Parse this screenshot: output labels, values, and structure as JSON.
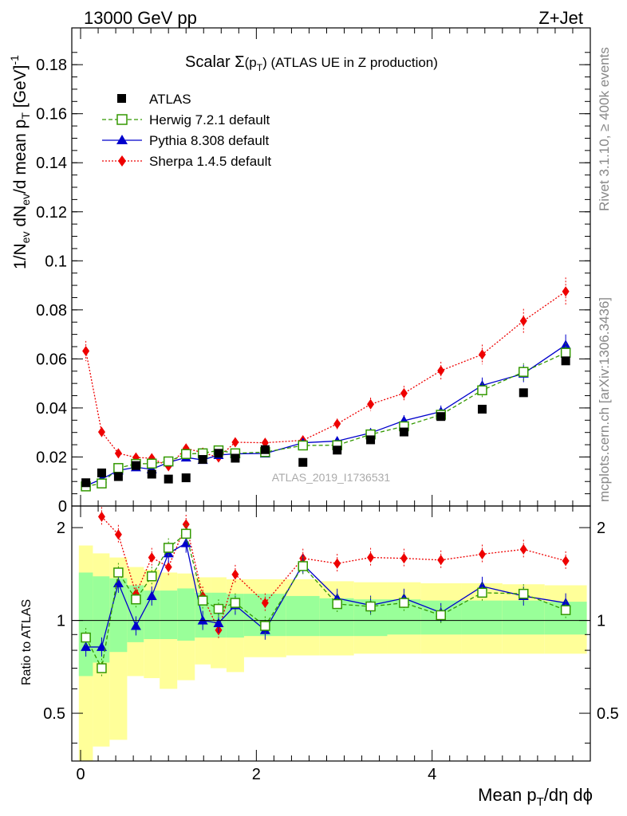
{
  "header": {
    "energy": "13000 GeV pp",
    "process": "Z+Jet"
  },
  "side_texts": {
    "rivet": "Rivet 3.1.10, ≥ 400k events",
    "source": "mcplots.cern.ch [arXiv:1306.3436]"
  },
  "watermark": "ATLAS_2019_I1736531",
  "main_title": {
    "prefix": "Scalar ",
    "sigma": "Σ",
    "inner": "(p",
    "sub": "T",
    "close": ")",
    "rest": "  (ATLAS UE in Z production)"
  },
  "y_label": {
    "a": "1/N",
    "a_sub": "ev",
    "b": " dN",
    "b_sub": "ev",
    "c": "/d mean p",
    "c_sub": "T",
    "d": " [GeV]",
    "d_sup": "-1"
  },
  "ratio_y_label": "Ratio to ATLAS",
  "x_label": {
    "a": "Mean p",
    "a_sub": "T",
    "b": "/dη dϕ"
  },
  "colors": {
    "atlas": "#000000",
    "herwig": "#339900",
    "pythia": "#0000cc",
    "sherpa": "#ee0000",
    "band_inner": "#99ff99",
    "band_outer": "#ffff99"
  },
  "chart_data": [
    {
      "type": "scatter",
      "panel": "main",
      "xlim": [
        -0.1,
        5.8
      ],
      "ylim": [
        0,
        0.195
      ],
      "xticks": [
        0,
        2,
        4
      ],
      "yticks": [
        0,
        0.02,
        0.04,
        0.06,
        0.08,
        0.1,
        0.12,
        0.14,
        0.16,
        0.18
      ],
      "ytick_labels": [
        "0",
        "0.02",
        "0.04",
        "0.06",
        "0.08",
        "0.1",
        "0.12",
        "0.14",
        "0.16",
        "0.18"
      ],
      "x": [
        0.06,
        0.24,
        0.43,
        0.63,
        0.81,
        1.0,
        1.2,
        1.39,
        1.57,
        1.76,
        2.1,
        2.53,
        2.92,
        3.3,
        3.68,
        4.1,
        4.57,
        5.04,
        5.52
      ],
      "series": [
        {
          "name": "ATLAS",
          "label": "ATLAS",
          "style": "square",
          "values": [
            0.0095,
            0.0135,
            0.012,
            0.0165,
            0.013,
            0.011,
            0.0115,
            0.019,
            0.0215,
            0.0195,
            0.023,
            0.0178,
            0.0228,
            0.027,
            0.0302,
            0.0365,
            0.0395,
            0.0462,
            0.0592
          ]
        },
        {
          "name": "Herwig",
          "label": "Herwig 7.2.1 default",
          "style": "open-square",
          "values": [
            0.008,
            0.0092,
            0.0155,
            0.0172,
            0.0173,
            0.0182,
            0.0212,
            0.0215,
            0.0227,
            0.0215,
            0.022,
            0.0247,
            0.0248,
            0.0292,
            0.0325,
            0.0372,
            0.0472,
            0.0547,
            0.0625
          ]
        },
        {
          "name": "Pythia",
          "label": "Pythia 8.308 default",
          "style": "triangle",
          "values": [
            0.0082,
            0.011,
            0.0145,
            0.0158,
            0.015,
            0.0178,
            0.0198,
            0.0188,
            0.0208,
            0.0213,
            0.0214,
            0.0258,
            0.0265,
            0.0298,
            0.0348,
            0.0385,
            0.0492,
            0.054,
            0.0657
          ]
        },
        {
          "name": "Sherpa",
          "label": "Sherpa 1.4.5 default",
          "style": "diamond",
          "values": [
            0.0632,
            0.0302,
            0.0215,
            0.0198,
            0.0195,
            0.0162,
            0.0235,
            0.0218,
            0.0198,
            0.026,
            0.0258,
            0.0268,
            0.0335,
            0.0415,
            0.046,
            0.0552,
            0.0618,
            0.0755,
            0.0875
          ]
        }
      ]
    },
    {
      "type": "scatter",
      "panel": "ratio",
      "xlim": [
        -0.1,
        5.8
      ],
      "ylim": [
        0.35,
        2.35
      ],
      "yticks": [
        0.5,
        1,
        2
      ],
      "ytick_labels": [
        "0.5",
        "1",
        "2"
      ],
      "x": [
        0.06,
        0.24,
        0.43,
        0.63,
        0.81,
        1.0,
        1.2,
        1.39,
        1.57,
        1.76,
        2.1,
        2.53,
        2.92,
        3.3,
        3.68,
        4.1,
        4.57,
        5.04,
        5.52
      ],
      "bin_edges": [
        -0.02,
        0.14,
        0.33,
        0.53,
        0.72,
        0.9,
        1.1,
        1.3,
        1.48,
        1.66,
        1.86,
        2.34,
        2.72,
        3.11,
        3.49,
        3.87,
        4.33,
        4.8,
        5.28,
        5.76
      ],
      "band_inner": {
        "lo": [
          0.66,
          0.73,
          0.79,
          0.85,
          0.87,
          0.87,
          0.86,
          0.88,
          0.88,
          0.88,
          0.89,
          0.89,
          0.89,
          0.89,
          0.9,
          0.9,
          0.9,
          0.9,
          0.9
        ],
        "hi": [
          1.43,
          1.39,
          1.37,
          1.3,
          1.25,
          1.25,
          1.27,
          1.23,
          1.23,
          1.22,
          1.22,
          1.2,
          1.18,
          1.17,
          1.17,
          1.16,
          1.16,
          1.16,
          1.15
        ]
      },
      "band_outer": {
        "lo": [
          0.33,
          0.39,
          0.41,
          0.66,
          0.65,
          0.6,
          0.64,
          0.72,
          0.7,
          0.68,
          0.76,
          0.77,
          0.77,
          0.78,
          0.78,
          0.78,
          0.78,
          0.78,
          0.78
        ],
        "hi": [
          1.75,
          1.65,
          1.6,
          1.49,
          1.46,
          1.43,
          1.42,
          1.38,
          1.38,
          1.36,
          1.36,
          1.36,
          1.34,
          1.33,
          1.33,
          1.32,
          1.32,
          1.31,
          1.3
        ]
      },
      "series": [
        {
          "name": "Herwig",
          "style": "open-square",
          "values": [
            0.88,
            0.7,
            1.43,
            1.17,
            1.39,
            1.72,
            1.91,
            1.16,
            1.09,
            1.14,
            0.96,
            1.5,
            1.13,
            1.11,
            1.14,
            1.04,
            1.23,
            1.22,
            1.08
          ]
        },
        {
          "name": "Pythia",
          "style": "triangle",
          "values": [
            0.82,
            0.82,
            1.32,
            0.96,
            1.2,
            1.65,
            1.78,
            1.0,
            0.98,
            1.12,
            0.93,
            1.52,
            1.18,
            1.12,
            1.18,
            1.06,
            1.29,
            1.2,
            1.14
          ]
        },
        {
          "name": "Sherpa",
          "style": "diamond",
          "values": [
            null,
            2.17,
            1.9,
            1.22,
            1.6,
            1.49,
            2.05,
            1.2,
            0.93,
            1.41,
            1.14,
            1.59,
            1.53,
            1.6,
            1.59,
            1.57,
            1.64,
            1.7,
            1.56
          ]
        }
      ]
    }
  ]
}
